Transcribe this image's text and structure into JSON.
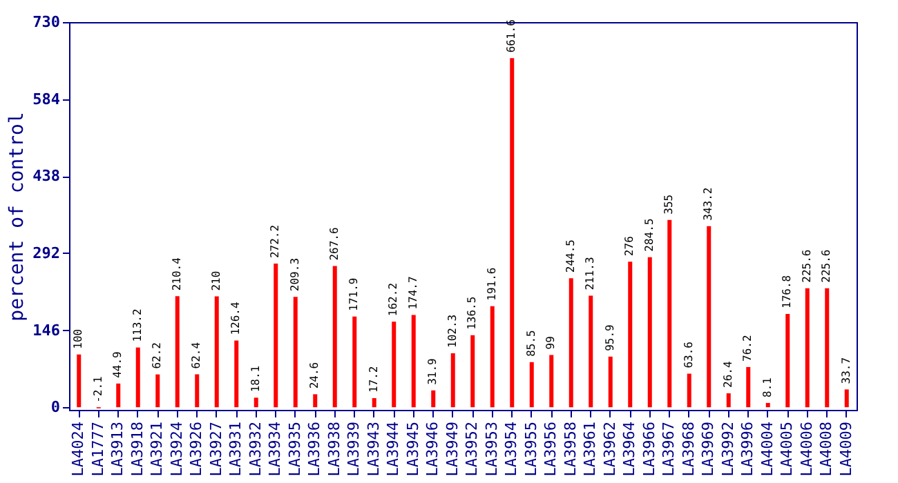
{
  "chart_data": {
    "type": "bar",
    "ylabel": "percent of control",
    "categories": [
      "LA4024",
      "LA1777",
      "LA3913",
      "LA3918",
      "LA3921",
      "LA3924",
      "LA3926",
      "LA3927",
      "LA3931",
      "LA3932",
      "LA3934",
      "LA3935",
      "LA3936",
      "LA3938",
      "LA3939",
      "LA3943",
      "LA3944",
      "LA3945",
      "LA3946",
      "LA3949",
      "LA3952",
      "LA3953",
      "LA3954",
      "LA3955",
      "LA3956",
      "LA3958",
      "LA3961",
      "LA3962",
      "LA3964",
      "LA3966",
      "LA3967",
      "LA3968",
      "LA3969",
      "LA3992",
      "LA3996",
      "LA4004",
      "LA4005",
      "LA4006",
      "LA4008",
      "LA4009"
    ],
    "values": [
      100,
      -2.1,
      44.9,
      113.2,
      62.2,
      210.4,
      62.4,
      210,
      126.4,
      18.1,
      272.2,
      209.3,
      24.6,
      267.6,
      171.9,
      17.2,
      162.2,
      174.7,
      31.9,
      102.3,
      136.5,
      191.6,
      661.6,
      85.5,
      99,
      244.5,
      211.3,
      95.9,
      276,
      284.5,
      355,
      63.6,
      343.2,
      26.4,
      76.2,
      8.1,
      176.8,
      225.6,
      225.6,
      33.7
    ],
    "color": "#ff0000",
    "data_labels": true,
    "ylim": [
      -5,
      730
    ],
    "yticks": [
      0,
      146,
      292,
      438,
      584,
      730
    ],
    "grid": false
  }
}
